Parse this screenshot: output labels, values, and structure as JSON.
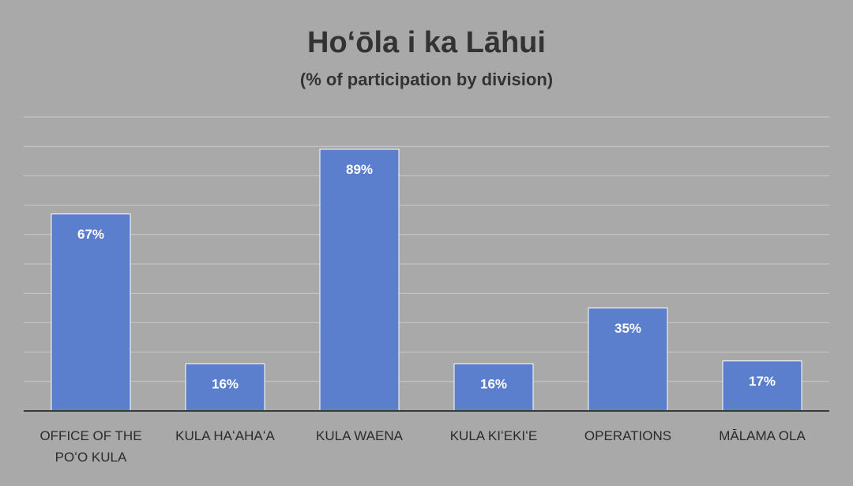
{
  "chart_data": {
    "type": "bar",
    "title": "Hoʻōla i ka Lāhui",
    "subtitle": "(% of participation by division)",
    "categories": [
      [
        "OFFICE OF THE",
        "POʻO KULA"
      ],
      [
        "KULA HAʻAHAʻA"
      ],
      [
        "KULA WAENA"
      ],
      [
        "KULA KIʻEKIʻE"
      ],
      [
        "OPERATIONS"
      ],
      [
        "MĀLAMA OLA"
      ]
    ],
    "values": [
      67,
      16,
      89,
      16,
      35,
      17
    ],
    "data_labels": [
      "67%",
      "16%",
      "89%",
      "16%",
      "35%",
      "17%"
    ],
    "ylim": [
      0,
      100
    ],
    "grid": true,
    "legend": "none",
    "colors": {
      "bar": "#5b7fcc",
      "background": "#a9a9a9",
      "gridline": "#c9c9c9",
      "axis": "#3a3a3a",
      "text": "#333333"
    }
  }
}
